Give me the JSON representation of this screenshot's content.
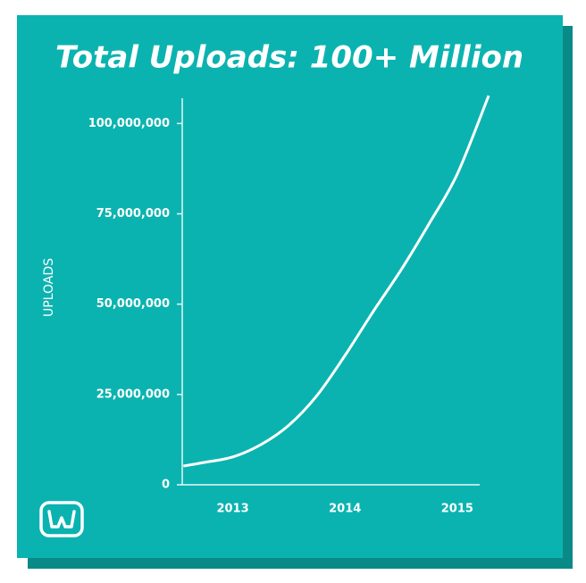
{
  "chart_data": {
    "type": "line",
    "title": "Total Uploads: 100+ Million",
    "y_label": "UPLOADS",
    "x": [
      2012.56,
      2012.75,
      2013,
      2013.25,
      2013.5,
      2013.75,
      2014,
      2014.25,
      2014.5,
      2014.75,
      2015,
      2015.28
    ],
    "series": [
      {
        "name": "Uploads",
        "color": "#ffffff",
        "values": [
          5200000,
          6200000,
          7700000,
          11100000,
          16500000,
          24700000,
          35800000,
          47900000,
          59500000,
          72300000,
          86000000,
          107700000
        ]
      }
    ],
    "xlim": [
      2012.55,
      2015.2
    ],
    "xticks": [
      2013,
      2014,
      2015
    ],
    "ylim": [
      0,
      107000000
    ],
    "yticks": [
      {
        "value": 0,
        "label": "0"
      },
      {
        "value": 25000000,
        "label": "25,000,000"
      },
      {
        "value": 50000000,
        "label": "50,000,000"
      },
      {
        "value": 75000000,
        "label": "75,000,000"
      },
      {
        "value": 100000000,
        "label": "100,000,000"
      }
    ],
    "grid": false
  }
}
